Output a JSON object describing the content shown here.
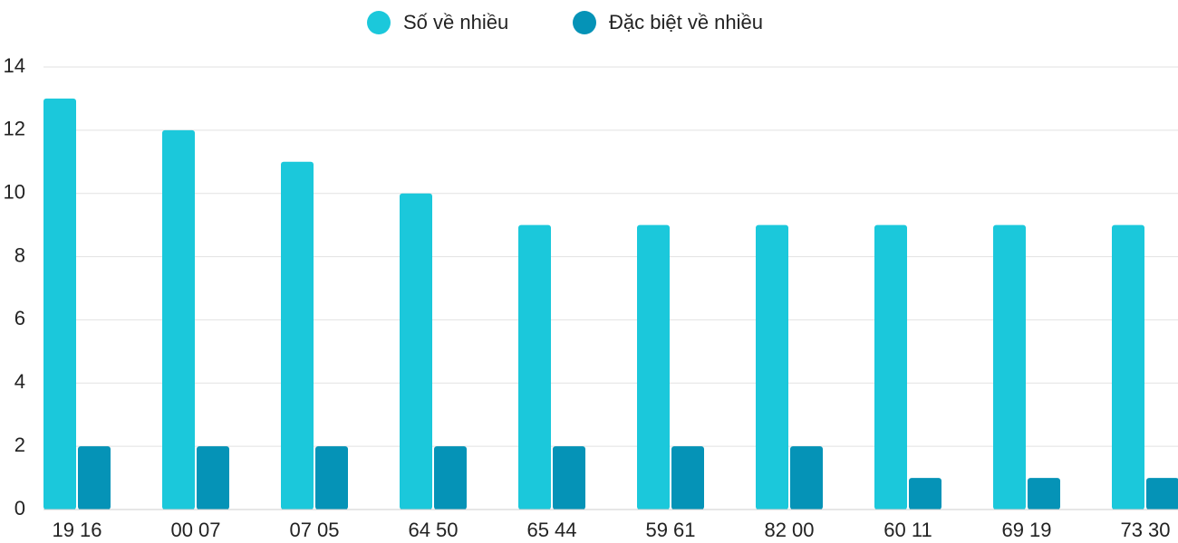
{
  "chart_data": {
    "type": "bar",
    "categories": [
      "19 16",
      "00 07",
      "07 05",
      "64 50",
      "65 44",
      "59 61",
      "82 00",
      "60 11",
      "69 19",
      "73 30"
    ],
    "series": [
      {
        "name": "Số về nhiều",
        "color": "#1bc8db",
        "values": [
          13,
          12,
          11,
          10,
          9,
          9,
          9,
          9,
          9,
          9
        ]
      },
      {
        "name": "Đặc biệt về nhiều",
        "color": "#0593b7",
        "values": [
          2,
          2,
          2,
          2,
          2,
          2,
          2,
          1,
          1,
          1
        ]
      }
    ],
    "ylim": [
      0,
      14
    ],
    "yticks": [
      0,
      2,
      4,
      6,
      8,
      10,
      12,
      14
    ],
    "grid": true,
    "legend": "top"
  }
}
